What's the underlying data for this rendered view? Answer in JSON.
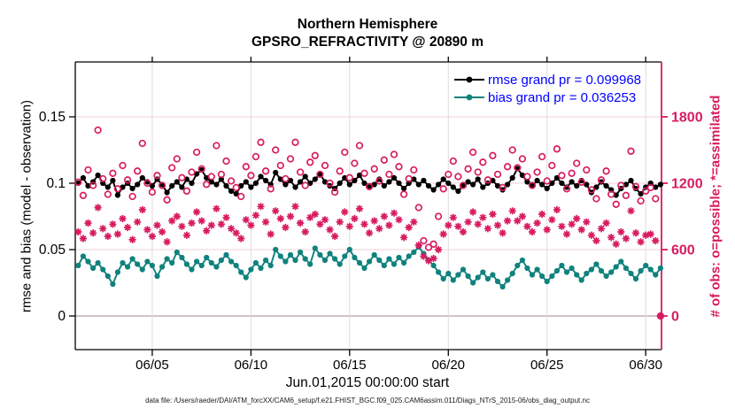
{
  "figure": {
    "title_line1": "Northern Hemisphere",
    "title_line2": "GPSRO_REFRACTIVITY @ 20890 m",
    "xlabel": "Jun.01,2015 00:00:00 start",
    "ylabel_left": "rmse and bias (model - observation)",
    "ylabel_right": "# of obs: o=possible; *=assimilated",
    "caption": "data file: /Users/raeder/DAI/ATM_forcXX/CAM6_setup/f.e21.FHIST_BGC.f09_025.CAM6assim.011/Diags_NTrS_2015-06/obs_diag_output.nc",
    "legend": [
      {
        "label": "rmse grand pr = 0.099968",
        "series": "rmse"
      },
      {
        "label": "bias grand pr = 0.036253",
        "series": "bias"
      }
    ],
    "colors": {
      "rmse": "#000000",
      "bias": "#0f827d",
      "obs": "#d81b60",
      "legend_text": "#0000ff",
      "grid_vertical": "#dcdcdc",
      "grid_horizontal": "#f3d2d9",
      "zero_line": "#c2b2b4",
      "axis": "#000000"
    }
  },
  "chart_data": {
    "type": "line",
    "title": "Northern Hemisphere — GPSRO_REFRACTIVITY @ 20890 m",
    "x_start_day": 1.25,
    "x_step_days": 0.25,
    "n_points": 119,
    "x_axis": {
      "label": "Jun.01,2015 00:00:00 start",
      "tick_labels": [
        "06/05",
        "06/10",
        "06/15",
        "06/20",
        "06/25",
        "06/30"
      ],
      "tick_days": [
        5,
        10,
        15,
        20,
        25,
        30
      ],
      "range_days": [
        1.1,
        30.8
      ],
      "grid": true
    },
    "y_left": {
      "label": "rmse and bias (model - observation)",
      "tick_labels": [
        "0",
        "0.05",
        "0.1",
        "0.15"
      ],
      "ticks": [
        0,
        0.05,
        0.1,
        0.15
      ],
      "range": [
        -0.025333,
        0.191333
      ],
      "grid": true
    },
    "y_right": {
      "label": "# of obs: o=possible; *=assimilated",
      "tick_labels": [
        "0",
        "600",
        "1200",
        "1800"
      ],
      "ticks": [
        0,
        600,
        1200,
        1800
      ],
      "range": [
        -304,
        2296
      ],
      "grid": false
    },
    "legend_position": "top-right-inside",
    "series": [
      {
        "name": "rmse",
        "axis": "left",
        "style": "line-dot",
        "grand_pr": 0.099968,
        "values": [
          0.1,
          0.104,
          0.098,
          0.101,
          0.106,
          0.1,
          0.097,
          0.102,
          0.091,
          0.097,
          0.1,
          0.096,
          0.099,
          0.104,
          0.101,
          0.098,
          0.103,
          0.099,
          0.093,
          0.098,
          0.101,
          0.097,
          0.103,
          0.1,
          0.107,
          0.11,
          0.104,
          0.101,
          0.099,
          0.103,
          0.098,
          0.094,
          0.092,
          0.098,
          0.101,
          0.097,
          0.1,
          0.105,
          0.102,
          0.099,
          0.108,
          0.103,
          0.099,
          0.102,
          0.097,
          0.101,
          0.105,
          0.1,
          0.103,
          0.107,
          0.101,
          0.098,
          0.096,
          0.1,
          0.104,
          0.099,
          0.102,
          0.106,
          0.1,
          0.097,
          0.099,
          0.103,
          0.098,
          0.101,
          0.104,
          0.1,
          0.096,
          0.1,
          0.103,
          0.099,
          0.102,
          0.098,
          0.095,
          0.099,
          0.103,
          0.1,
          0.097,
          0.094,
          0.098,
          0.101,
          0.099,
          0.103,
          0.097,
          0.1,
          0.102,
          0.098,
          0.095,
          0.099,
          0.104,
          0.111,
          0.106,
          0.101,
          0.098,
          0.102,
          0.099,
          0.096,
          0.1,
          0.104,
          0.1,
          0.097,
          0.101,
          0.098,
          0.102,
          0.099,
          0.093,
          0.097,
          0.101,
          0.098,
          0.095,
          0.091,
          0.096,
          0.099,
          0.102,
          0.096,
          0.092,
          0.097,
          0.1,
          0.097,
          0.099
        ]
      },
      {
        "name": "bias",
        "axis": "left",
        "style": "line-dot",
        "grand_pr": 0.036253,
        "values": [
          0.038,
          0.045,
          0.041,
          0.036,
          0.04,
          0.035,
          0.03,
          0.024,
          0.033,
          0.04,
          0.037,
          0.043,
          0.039,
          0.035,
          0.041,
          0.038,
          0.03,
          0.037,
          0.043,
          0.04,
          0.048,
          0.044,
          0.039,
          0.035,
          0.041,
          0.038,
          0.044,
          0.04,
          0.037,
          0.042,
          0.046,
          0.041,
          0.038,
          0.033,
          0.029,
          0.035,
          0.04,
          0.036,
          0.042,
          0.038,
          0.05,
          0.045,
          0.041,
          0.046,
          0.042,
          0.048,
          0.043,
          0.039,
          0.051,
          0.046,
          0.042,
          0.047,
          0.043,
          0.039,
          0.045,
          0.05,
          0.044,
          0.04,
          0.036,
          0.041,
          0.046,
          0.042,
          0.038,
          0.043,
          0.039,
          0.044,
          0.04,
          0.045,
          0.048,
          0.052,
          0.047,
          0.042,
          0.038,
          0.033,
          0.028,
          0.032,
          0.027,
          0.031,
          0.035,
          0.03,
          0.025,
          0.029,
          0.033,
          0.028,
          0.031,
          0.026,
          0.022,
          0.027,
          0.032,
          0.038,
          0.042,
          0.036,
          0.031,
          0.035,
          0.03,
          0.026,
          0.03,
          0.034,
          0.038,
          0.033,
          0.036,
          0.031,
          0.027,
          0.032,
          0.035,
          0.039,
          0.034,
          0.03,
          0.033,
          0.037,
          0.041,
          0.036,
          0.032,
          0.028,
          0.034,
          0.038,
          0.035,
          0.031,
          0.036
        ]
      },
      {
        "name": "possible",
        "axis": "right",
        "style": "open-circle",
        "values": [
          1210,
          1090,
          1320,
          1180,
          1680,
          1240,
          1100,
          1290,
          1150,
          1360,
          1230,
          1080,
          1310,
          1560,
          1200,
          1120,
          1270,
          1180,
          1050,
          1340,
          1420,
          1250,
          1130,
          1300,
          1480,
          1330,
          1190,
          1260,
          1540,
          1280,
          1400,
          1220,
          1160,
          1080,
          1350,
          1270,
          1440,
          1570,
          1310,
          1150,
          1500,
          1360,
          1240,
          1420,
          1570,
          1300,
          1180,
          1390,
          1450,
          1280,
          1360,
          1200,
          1120,
          1310,
          1480,
          1250,
          1380,
          1540,
          1290,
          1170,
          1330,
          1220,
          1410,
          1280,
          1460,
          1350,
          1100,
          1240,
          1320,
          980,
          680,
          620,
          650,
          900,
          1150,
          1280,
          1400,
          1260,
          1180,
          1330,
          1480,
          1300,
          1390,
          1230,
          1450,
          1280,
          1160,
          1350,
          1500,
          1340,
          1420,
          1260,
          1180,
          1300,
          1440,
          1220,
          1360,
          1510,
          1270,
          1150,
          1290,
          1380,
          1210,
          1320,
          1140,
          1060,
          1230,
          1310,
          1100,
          1010,
          1180,
          1090,
          1490,
          1170,
          1040,
          1130,
          1160,
          1060,
          0
        ]
      },
      {
        "name": "assimilated",
        "axis": "right",
        "style": "asterisk",
        "values": [
          760,
          700,
          840,
          750,
          980,
          790,
          720,
          830,
          740,
          880,
          800,
          690,
          850,
          960,
          780,
          720,
          820,
          760,
          670,
          860,
          900,
          810,
          730,
          840,
          940,
          860,
          770,
          820,
          970,
          830,
          890,
          790,
          750,
          700,
          870,
          820,
          910,
          990,
          850,
          740,
          950,
          880,
          800,
          900,
          990,
          840,
          760,
          890,
          920,
          830,
          870,
          780,
          720,
          850,
          940,
          810,
          880,
          970,
          830,
          750,
          860,
          790,
          900,
          820,
          930,
          870,
          710,
          800,
          850,
          640,
          540,
          500,
          520,
          600,
          740,
          820,
          890,
          810,
          760,
          850,
          940,
          830,
          890,
          790,
          920,
          820,
          750,
          860,
          950,
          860,
          900,
          810,
          760,
          840,
          920,
          780,
          870,
          960,
          810,
          740,
          830,
          880,
          780,
          850,
          730,
          680,
          790,
          840,
          710,
          650,
          760,
          700,
          950,
          750,
          670,
          730,
          740,
          680,
          0
        ]
      }
    ]
  }
}
